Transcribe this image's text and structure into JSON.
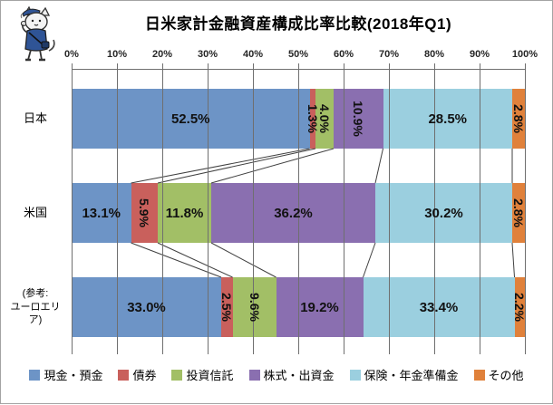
{
  "chart_data": {
    "type": "bar",
    "orientation": "horizontal",
    "stacked": true,
    "title": "日米家計金融資産構成比率比較(2018年Q1)",
    "axis_position": "top",
    "x_ticks": [
      "0%",
      "10%",
      "20%",
      "30%",
      "40%",
      "50%",
      "60%",
      "70%",
      "80%",
      "90%",
      "100%"
    ],
    "x_range": [
      0,
      100
    ],
    "gridlines": true,
    "series_connector_lines": true,
    "legend_position": "bottom",
    "categories": [
      "日本",
      "米国",
      "(参考:ユーロエリア)"
    ],
    "category_display_lines": [
      [
        "日本"
      ],
      [
        "米国"
      ],
      [
        "(参考:",
        "ユーロエリア)"
      ]
    ],
    "series": [
      {
        "name": "現金・預金",
        "color": "#6D94C6",
        "values": [
          52.5,
          13.1,
          33.0
        ]
      },
      {
        "name": "債券",
        "color": "#C9605C",
        "values": [
          1.3,
          5.9,
          2.5
        ]
      },
      {
        "name": "投資信託",
        "color": "#A2BF66",
        "values": [
          4.0,
          11.8,
          9.6
        ]
      },
      {
        "name": "株式・出資金",
        "color": "#8A6FB0",
        "values": [
          10.9,
          36.2,
          19.2
        ]
      },
      {
        "name": "保険・年金準備金",
        "color": "#9BCFDF",
        "values": [
          28.5,
          30.2,
          33.4
        ]
      },
      {
        "name": "その他",
        "color": "#E0813B",
        "values": [
          2.8,
          2.8,
          2.2
        ]
      }
    ],
    "data_labels": [
      [
        "52.5%",
        "1.3%",
        "4.0%",
        "10.9%",
        "28.5%",
        "2.8%"
      ],
      [
        "13.1%",
        "5.9%",
        "11.8%",
        "36.2%",
        "30.2%",
        "2.8%"
      ],
      [
        "33.0%",
        "2.5%",
        "9.6%",
        "19.2%",
        "33.4%",
        "2.2%"
      ]
    ],
    "rotated_labels": [
      [
        false,
        true,
        true,
        true,
        false,
        true
      ],
      [
        false,
        true,
        false,
        false,
        false,
        true
      ],
      [
        false,
        true,
        true,
        false,
        false,
        true
      ]
    ],
    "colors": {
      "grid": "#6f6f6f",
      "connector": "#404040",
      "label_text": "#111111",
      "axis_text": "#262626"
    },
    "mascot": "cat-mascot"
  }
}
